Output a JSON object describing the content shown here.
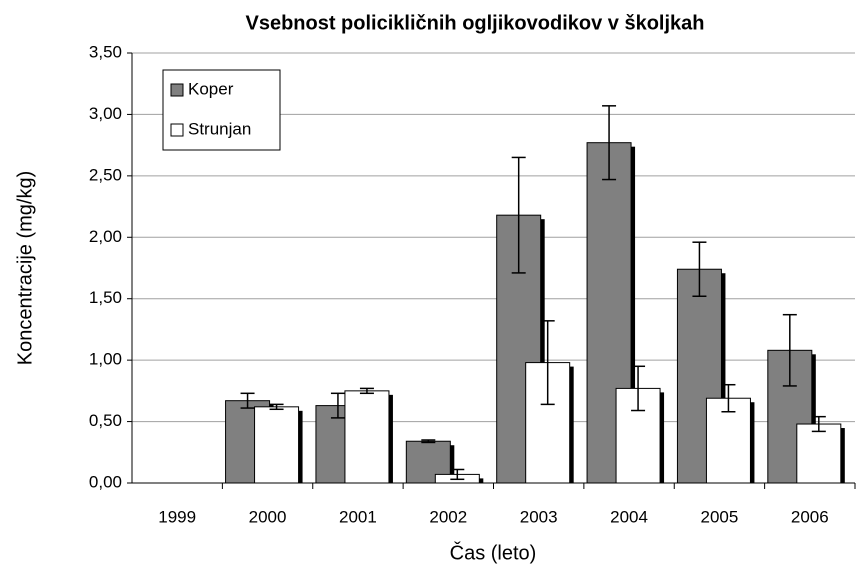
{
  "chart_data": {
    "type": "bar",
    "title": "Vsebnost policikličnih ogljikovodikov v školjkah",
    "x_label": "Čas (leto)",
    "y_label": "Koncentracije (mg/kg)",
    "categories": [
      "1999",
      "2000",
      "2001",
      "2002",
      "2003",
      "2004",
      "2005",
      "2006"
    ],
    "series": [
      {
        "name": "Koper",
        "color": "#808080",
        "values": [
          null,
          0.67,
          0.63,
          0.34,
          2.18,
          2.77,
          1.74,
          1.08
        ],
        "errors": [
          null,
          0.06,
          0.1,
          0.01,
          0.47,
          0.3,
          0.22,
          0.29
        ]
      },
      {
        "name": "Strunjan",
        "color": "#ffffff",
        "values": [
          null,
          0.62,
          0.75,
          0.07,
          0.98,
          0.77,
          0.69,
          0.48
        ],
        "errors": [
          null,
          0.02,
          0.02,
          0.04,
          0.34,
          0.18,
          0.11,
          0.06
        ]
      }
    ],
    "ylim": [
      0,
      3.5
    ],
    "yticks": [
      {
        "value": 0,
        "label": "0,00"
      },
      {
        "value": 0.5,
        "label": "0,50"
      },
      {
        "value": 1,
        "label": "1,00"
      },
      {
        "value": 1.5,
        "label": "1,50"
      },
      {
        "value": 2,
        "label": "2,00"
      },
      {
        "value": 2.5,
        "label": "2,50"
      },
      {
        "value": 3,
        "label": "3,00"
      },
      {
        "value": 3.5,
        "label": "3,50"
      }
    ],
    "grid": true,
    "legend": "top-left"
  }
}
